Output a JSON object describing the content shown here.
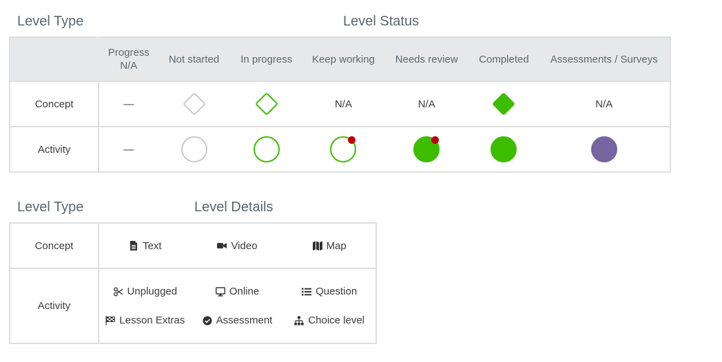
{
  "status_section": {
    "level_type_heading": "Level Type",
    "level_status_heading": "Level Status",
    "columns": [
      "Progress N/A",
      "Not started",
      "In progress",
      "Keep working",
      "Needs review",
      "Completed",
      "Assessments / Surveys"
    ],
    "columns_line1": [
      "Progress",
      "Not started",
      "In progress",
      "Keep working",
      "Needs review",
      "Completed",
      "Assessments / Surveys"
    ],
    "columns_line2": [
      "N/A",
      "",
      "",
      "",
      "",
      "",
      ""
    ],
    "rows": [
      {
        "type": "Concept",
        "progress_na": "—",
        "not_started_icon": "diamond-outline-gray-icon",
        "in_progress_icon": "diamond-outline-green-icon",
        "keep_working": "N/A",
        "needs_review": "N/A",
        "completed_icon": "diamond-filled-green-icon",
        "assessments": "N/A"
      },
      {
        "type": "Activity",
        "progress_na": "—",
        "not_started_icon": "circle-outline-gray-icon",
        "in_progress_icon": "circle-outline-green-icon",
        "keep_working_icon": "circle-outline-green-red-dot-icon",
        "needs_review_icon": "circle-filled-green-red-dot-icon",
        "completed_icon": "circle-filled-green-icon",
        "assessments_icon": "circle-filled-purple-icon"
      }
    ]
  },
  "details_section": {
    "level_type_heading": "Level Type",
    "level_details_heading": "Level Details",
    "rows": [
      {
        "type": "Concept",
        "items": [
          {
            "label": "Text",
            "icon": "document-icon"
          },
          {
            "label": "Video",
            "icon": "video-camera-icon"
          },
          {
            "label": "Map",
            "icon": "map-icon"
          }
        ]
      },
      {
        "type": "Activity",
        "items": [
          {
            "label": "Unplugged",
            "icon": "scissors-icon"
          },
          {
            "label": "Online",
            "icon": "desktop-icon"
          },
          {
            "label": "Question",
            "icon": "list-icon"
          },
          {
            "label": "Lesson Extras",
            "icon": "checkered-flag-icon"
          },
          {
            "label": "Assessment",
            "icon": "check-circle-icon"
          },
          {
            "label": "Choice level",
            "icon": "sitemap-icon"
          }
        ]
      }
    ]
  },
  "colors": {
    "green": "#3dbd00",
    "gray_outline": "#c9c9c9",
    "red_dot": "#c00000",
    "purple": "#7665a0",
    "header_bg": "#e7e8ea",
    "heading_text": "#5b6770"
  }
}
